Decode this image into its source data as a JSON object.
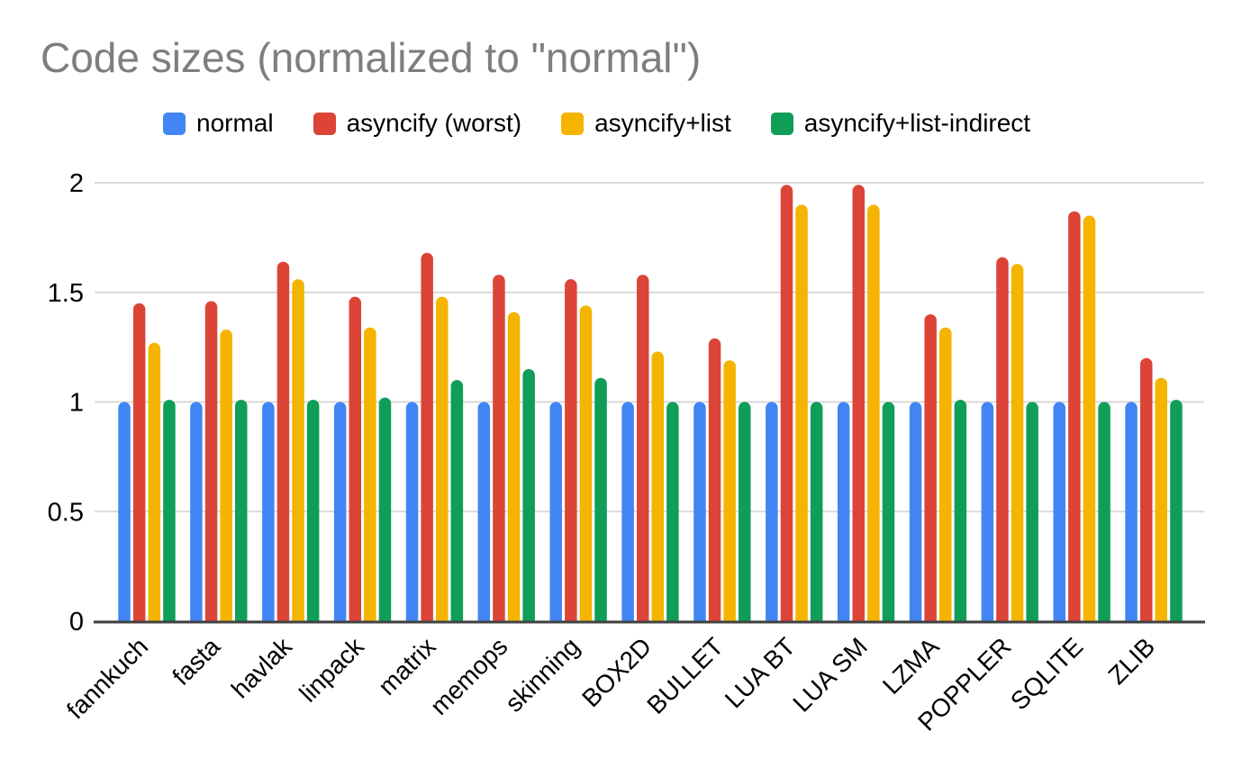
{
  "chart_data": {
    "type": "bar",
    "title": "Code sizes (normalized to \"normal\")",
    "xlabel": "",
    "ylabel": "",
    "ylim": [
      0,
      2
    ],
    "yticks": [
      0,
      0.5,
      1,
      1.5,
      2
    ],
    "grid": true,
    "legend_position": "top",
    "categories": [
      "fannkuch",
      "fasta",
      "havlak",
      "linpack",
      "matrix",
      "memops",
      "skinning",
      "BOX2D",
      "BULLET",
      "LUA BT",
      "LUA SM",
      "LZMA",
      "POPPLER",
      "SQLITE",
      "ZLIB"
    ],
    "series": [
      {
        "name": "normal",
        "color": "#4285F4",
        "values": [
          1.0,
          1.0,
          1.0,
          1.0,
          1.0,
          1.0,
          1.0,
          1.0,
          1.0,
          1.0,
          1.0,
          1.0,
          1.0,
          1.0,
          1.0
        ]
      },
      {
        "name": "asyncify (worst)",
        "color": "#DB4437",
        "values": [
          1.45,
          1.46,
          1.64,
          1.48,
          1.68,
          1.58,
          1.56,
          1.58,
          1.29,
          1.99,
          1.99,
          1.4,
          1.66,
          1.87,
          1.2
        ]
      },
      {
        "name": "asyncify+list",
        "color": "#F4B400",
        "values": [
          1.27,
          1.33,
          1.56,
          1.34,
          1.48,
          1.41,
          1.44,
          1.23,
          1.19,
          1.9,
          1.9,
          1.34,
          1.63,
          1.85,
          1.11
        ]
      },
      {
        "name": "asyncify+list-indirect",
        "color": "#0F9D58",
        "values": [
          1.01,
          1.01,
          1.01,
          1.02,
          1.1,
          1.15,
          1.11,
          1.0,
          1.0,
          1.0,
          1.0,
          1.01,
          1.0,
          1.0,
          1.01
        ]
      }
    ],
    "colors": {
      "title_text": "#7e7e7e",
      "tick_label_text": "#000000",
      "gridline": "#d9d9d9",
      "axis_baseline": "#424242",
      "background": "#ffffff"
    }
  }
}
